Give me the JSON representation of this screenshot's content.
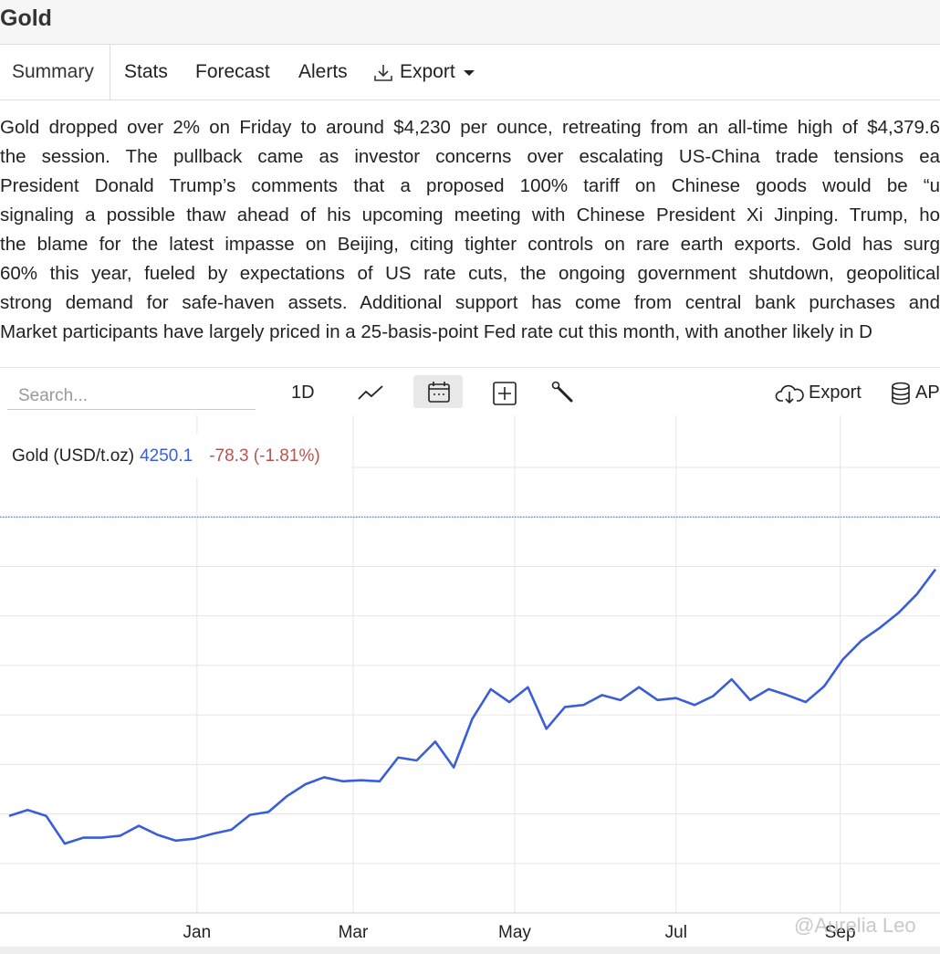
{
  "header": {
    "title": "Gold"
  },
  "tabs": [
    "Summary",
    "Stats",
    "Forecast",
    "Alerts",
    "Export"
  ],
  "summary": {
    "lines": [
      "Gold dropped over 2% on Friday to around $4,230 per ounce, retreating from an all-time high of $4,379.6",
      "the session. The pullback came as investor concerns over escalating US-China trade tensions ea",
      "President Donald Trump’s comments that a proposed 100% tariff on Chinese goods would be “u",
      "signaling a possible thaw ahead of his upcoming meeting with Chinese President Xi Jinping. Trump, ho",
      "the blame for the latest impasse on Beijing, citing tighter controls on rare earth exports. Gold has surg",
      "60% this year, fueled by expectations of US rate cuts, the ongoing government shutdown, geopolitical",
      "strong demand for safe-haven assets. Additional support has come from central bank purchases and",
      "Market participants have largely priced in a 25-basis-point Fed rate cut this month, with another likely in D"
    ]
  },
  "toolbar": {
    "search_placeholder": "Search...",
    "interval": "1D",
    "export": "Export",
    "api": "API"
  },
  "chart_data": {
    "type": "line",
    "last_price": 4250.1,
    "change": "-78.3 (-1.81%)",
    "series": [
      {
        "name": "Gold (USD/t.oz)",
        "color": "#3a5ed8",
        "values": [
          2740,
          2770,
          2740,
          2600,
          2630,
          2630,
          2640,
          2690,
          2645,
          2615,
          2625,
          2650,
          2670,
          2745,
          2760,
          2840,
          2900,
          2935,
          2915,
          2920,
          2915,
          3035,
          3020,
          3115,
          2985,
          3230,
          3380,
          3315,
          3390,
          3180,
          3290,
          3300,
          3350,
          3325,
          3390,
          3325,
          3335,
          3300,
          3345,
          3430,
          3325,
          3380,
          3350,
          3315,
          3395,
          3530,
          3625,
          3690,
          3765,
          3860,
          3985
        ]
      }
    ],
    "xlim": [
      0,
      50
    ],
    "xticks": [
      {
        "value": 10.14,
        "label": "Jan"
      },
      {
        "value": 18.57,
        "label": "Mar"
      },
      {
        "value": 27.29,
        "label": "May"
      },
      {
        "value": 36,
        "label": "Jul"
      },
      {
        "value": 44.86,
        "label": "Sep"
      }
    ],
    "ylim": [
      2250,
      4500
    ],
    "yticks": [
      2250,
      2500,
      2750,
      3000,
      3250,
      3500,
      3750,
      4000,
      4250,
      4500
    ],
    "grid": true
  },
  "watermark": "@Aurelia Leo"
}
